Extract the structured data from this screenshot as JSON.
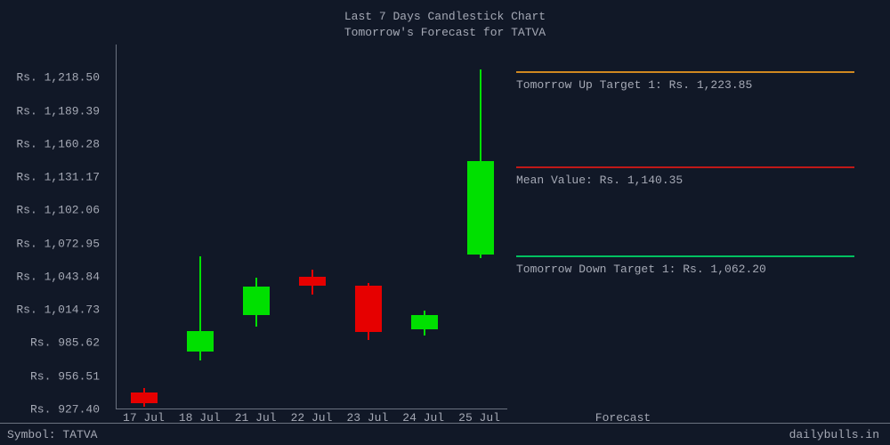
{
  "title": {
    "line1": "Last 7 Days Candlestick Chart",
    "line2": "Tomorrow's Forecast for TATVA",
    "fontsize": 13,
    "color": "#a5a9b5"
  },
  "chart": {
    "type": "candlestick",
    "background_color": "#111827",
    "axis_color": "#6b7280",
    "text_color": "#a5a9b5",
    "up_color": "#00e000",
    "down_color": "#e60000",
    "ylim_min": 927.4,
    "ylim_max": 1247.61,
    "ytick_labels": [
      "Rs. 1,218.50",
      "Rs. 1,189.39",
      "Rs. 1,160.28",
      "Rs. 1,131.17",
      "Rs. 1,102.06",
      "Rs. 1,072.95",
      "Rs. 1,043.84",
      "Rs. 1,014.73",
      "Rs. 985.62",
      "Rs. 956.51",
      "Rs. 927.40"
    ],
    "ytick_values": [
      1218.5,
      1189.39,
      1160.28,
      1131.17,
      1102.06,
      1072.95,
      1043.84,
      1014.73,
      985.62,
      956.51,
      927.4
    ],
    "xtick_labels": [
      "17 Jul",
      "18 Jul",
      "21 Jul",
      "22 Jul",
      "23 Jul",
      "24 Jul",
      "25 Jul"
    ],
    "forecast_xlabel": "Forecast",
    "candle_width": 30,
    "candles": [
      {
        "x": 0,
        "open": 942,
        "high": 946,
        "low": 930,
        "close": 933,
        "dir": "down"
      },
      {
        "x": 1,
        "open": 978,
        "high": 1062,
        "low": 970,
        "close": 996,
        "dir": "up"
      },
      {
        "x": 2,
        "open": 1010,
        "high": 1043,
        "low": 1000,
        "close": 1035,
        "dir": "up"
      },
      {
        "x": 3,
        "open": 1044,
        "high": 1050,
        "low": 1028,
        "close": 1036,
        "dir": "down"
      },
      {
        "x": 4,
        "open": 1036,
        "high": 1038,
        "low": 988,
        "close": 995,
        "dir": "down"
      },
      {
        "x": 5,
        "open": 998,
        "high": 1014,
        "low": 992,
        "close": 1010,
        "dir": "up"
      },
      {
        "x": 6,
        "open": 1063,
        "high": 1226,
        "low": 1060,
        "close": 1145,
        "dir": "up"
      }
    ]
  },
  "forecast": {
    "up": {
      "label": "Tomorrow Up Target 1: Rs. 1,223.85",
      "value": 1223.85,
      "color": "#d08820"
    },
    "mean": {
      "label": "Mean Value: Rs. 1,140.35",
      "value": 1140.35,
      "color": "#c01818"
    },
    "down": {
      "label": "Tomorrow Down Target 1: Rs. 1,062.20",
      "value": 1062.2,
      "color": "#00c060"
    }
  },
  "footer": {
    "symbol_label": "Symbol: TATVA",
    "site": "dailybulls.in"
  }
}
